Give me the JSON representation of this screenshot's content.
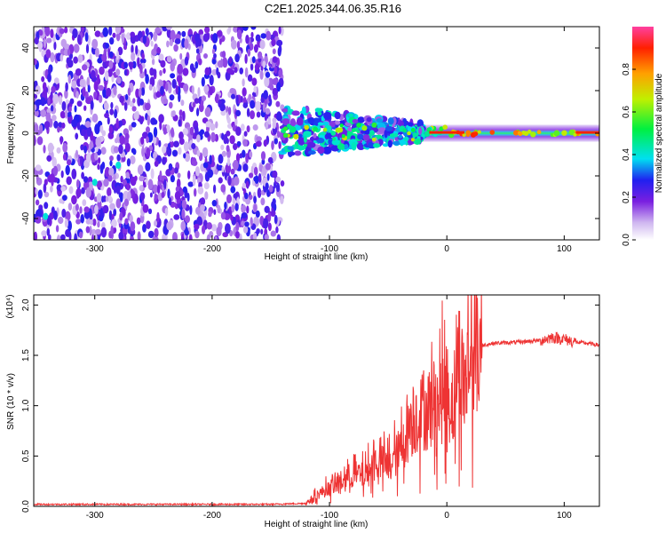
{
  "title": "C2E1.2025.344.06.35.R16",
  "chart_data": [
    {
      "type": "heatmap",
      "xlabel": "Height of straight line (km)",
      "ylabel": "Frequency (Hz)",
      "xlim": [
        -352,
        130
      ],
      "ylim": [
        -50,
        50
      ],
      "xticks": [
        -300,
        -200,
        -100,
        0,
        100
      ],
      "yticks": [
        -40,
        -20,
        0,
        20,
        40
      ],
      "xtick_labels": [
        "-300",
        "-200",
        "-100",
        "0",
        "100"
      ],
      "ytick_labels": [
        "-40",
        "-20",
        "0",
        "20",
        "40"
      ],
      "colorbar": {
        "label": "Normalized spectral amplitude",
        "range": [
          0,
          1
        ],
        "ticks": [
          0.0,
          0.2,
          0.4,
          0.6,
          0.8
        ],
        "tick_labels": [
          "0.0",
          "0.2",
          "0.4",
          "0.6",
          "0.8"
        ],
        "colors": [
          "#ffffff",
          "#d0b8f0",
          "#7a1fe0",
          "#2020f0",
          "#00e0f0",
          "#00f040",
          "#c0f000",
          "#ffa000",
          "#ff2000",
          "#ff40a0"
        ]
      },
      "regions": [
        {
          "description_x": [
            -352,
            -140
          ],
          "frequency_range": [
            -50,
            50
          ],
          "level": "scattered 0.1-0.3"
        },
        {
          "description_x": [
            -140,
            -30
          ],
          "frequency_range": [
            -10,
            12
          ],
          "level": "clustered 0.2-0.6"
        },
        {
          "description_x": [
            -30,
            130
          ],
          "frequency_range": [
            -4,
            4
          ],
          "level": "line 0.5-1.0"
        }
      ]
    },
    {
      "type": "line",
      "xlabel": "Height of straight line (km)",
      "ylabel": "SNR (10 * v/v)",
      "ylabel_multiplier": "(x10⁴)",
      "xlim": [
        -352,
        130
      ],
      "ylim": [
        0,
        2.1
      ],
      "xticks": [
        -300,
        -200,
        -100,
        0,
        100
      ],
      "yticks": [
        0.0,
        0.5,
        1.0,
        1.5,
        2.0
      ],
      "xtick_labels": [
        "-300",
        "-200",
        "-100",
        "0",
        "100"
      ],
      "ytick_labels": [
        "0.0",
        "0.5",
        "1.0",
        "1.5",
        "2.0"
      ],
      "color": "#ee3333",
      "series": [
        {
          "x": [
            -352,
            -300,
            -250,
            -200,
            -150,
            -120,
            -110,
            -100,
            -90,
            -80,
            -70,
            -60,
            -50,
            -40,
            -30,
            -20,
            -10,
            0,
            5,
            10,
            15,
            20,
            30,
            40,
            60,
            80,
            90,
            100,
            110,
            120,
            130
          ],
          "values": [
            0.02,
            0.02,
            0.02,
            0.02,
            0.02,
            0.03,
            0.12,
            0.18,
            0.25,
            0.32,
            0.3,
            0.45,
            0.4,
            0.55,
            0.85,
            0.95,
            1.0,
            1.15,
            1.0,
            1.45,
            1.2,
            1.5,
            1.6,
            1.62,
            1.63,
            1.65,
            1.68,
            1.66,
            1.63,
            1.62,
            1.6
          ]
        }
      ]
    }
  ]
}
